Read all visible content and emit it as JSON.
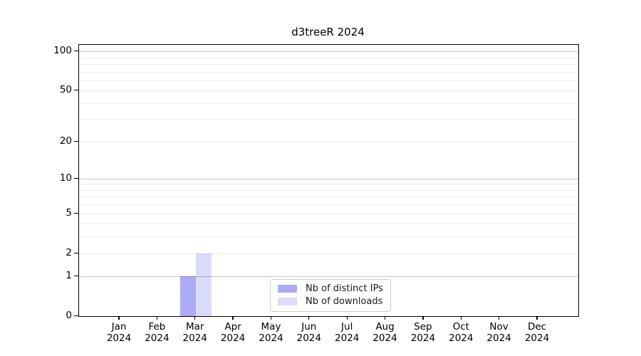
{
  "chart_data": {
    "type": "bar",
    "title": "d3treeR 2024",
    "categories": [
      {
        "month": "Jan",
        "year": "2024"
      },
      {
        "month": "Feb",
        "year": "2024"
      },
      {
        "month": "Mar",
        "year": "2024"
      },
      {
        "month": "Apr",
        "year": "2024"
      },
      {
        "month": "May",
        "year": "2024"
      },
      {
        "month": "Jun",
        "year": "2024"
      },
      {
        "month": "Jul",
        "year": "2024"
      },
      {
        "month": "Aug",
        "year": "2024"
      },
      {
        "month": "Sep",
        "year": "2024"
      },
      {
        "month": "Oct",
        "year": "2024"
      },
      {
        "month": "Nov",
        "year": "2024"
      },
      {
        "month": "Dec",
        "year": "2024"
      }
    ],
    "series": [
      {
        "name": "Nb of distinct IPs",
        "color": "rgba(0,0,230,0.33)",
        "values": [
          0,
          0,
          1,
          0,
          0,
          0,
          0,
          0,
          0,
          0,
          0,
          0
        ]
      },
      {
        "name": "Nb of downloads",
        "color": "rgba(0,0,230,0.14)",
        "values": [
          0,
          0,
          2,
          0,
          0,
          0,
          0,
          0,
          0,
          0,
          0,
          0
        ]
      }
    ],
    "xlabel": "",
    "ylabel": "",
    "y_axis": {
      "scale": "log1p",
      "tick_labels": [
        100,
        50,
        20,
        10,
        5,
        2,
        1,
        0
      ],
      "ylim": [
        0,
        112
      ],
      "gridlines_major": [
        1,
        10,
        100
      ],
      "gridlines_minor": [
        2,
        3,
        4,
        5,
        6,
        7,
        8,
        9,
        20,
        30,
        40,
        50,
        60,
        70,
        80,
        90
      ]
    },
    "legend": {
      "position": "inside-bottom-center",
      "entries": [
        "Nb of distinct IPs",
        "Nb of downloads"
      ]
    },
    "colors": {
      "grid_major": "#c6c6c6",
      "grid_minor": "#ececec",
      "spine": "#000000",
      "background": "#ffffff"
    }
  }
}
